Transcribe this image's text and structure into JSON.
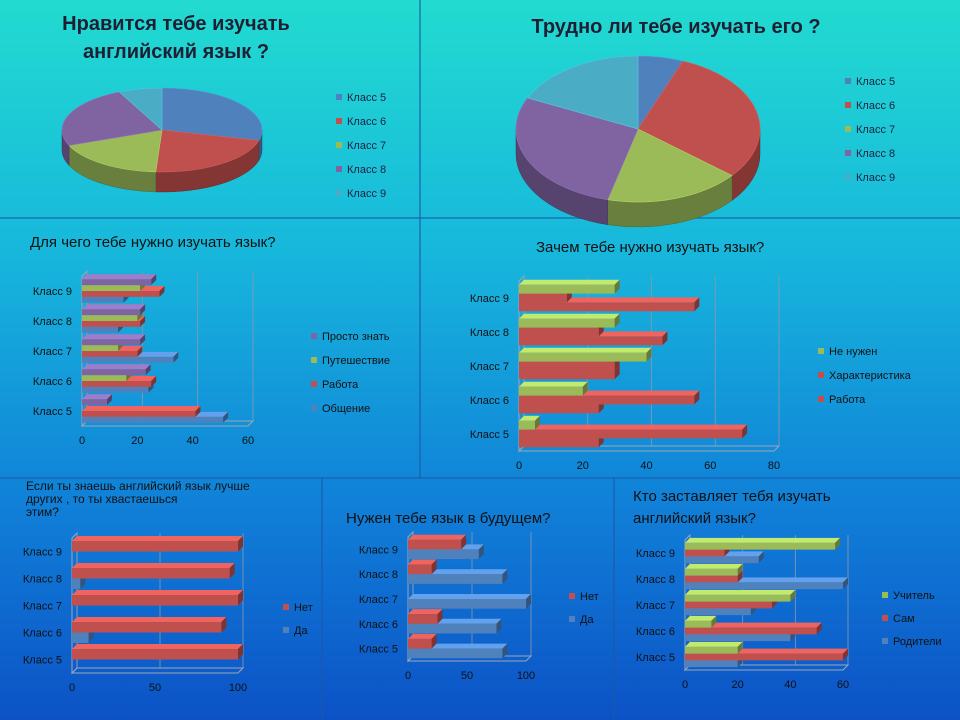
{
  "colors": {
    "blue": "#4f81bd",
    "red": "#c0504d",
    "green": "#9bbb59",
    "purple": "#8064a2",
    "cyan": "#4bacc6",
    "bg_top": "#22dbd0",
    "bg_bottom": "#0c55c8"
  },
  "chart_data": [
    {
      "type": "pie",
      "title": "Нравится тебе изучать английский язык ?",
      "categories": [
        "Класс 5",
        "Класс 6",
        "Класс 7",
        "Класс 8",
        "Класс 9"
      ],
      "values": [
        29,
        22,
        18,
        24,
        7
      ]
    },
    {
      "type": "pie",
      "title": "Трудно ли тебе изучать его ?",
      "categories": [
        "Класс 5",
        "Класс 6",
        "Класс 7",
        "Класс 8",
        "Класс 9"
      ],
      "values": [
        6,
        30,
        18,
        28,
        18
      ]
    },
    {
      "type": "bar",
      "orientation": "horizontal",
      "title": "Для чего тебе нужно изучать язык?",
      "categories": [
        "Класс 5",
        "Класс 6",
        "Класс 7",
        "Класс 8",
        "Класс 9"
      ],
      "series": [
        {
          "name": "Общение",
          "values": [
            51,
            24,
            33,
            13,
            15
          ]
        },
        {
          "name": "Работа",
          "values": [
            41,
            25,
            20,
            21,
            28
          ]
        },
        {
          "name": "Путешествие",
          "values": [
            0,
            16,
            13,
            20,
            21
          ]
        },
        {
          "name": "Просто знать",
          "values": [
            9,
            23,
            21,
            21,
            25
          ]
        }
      ],
      "xlim": [
        0,
        60
      ],
      "xticks": [
        0,
        20,
        40,
        60
      ],
      "legend": "right"
    },
    {
      "type": "bar",
      "orientation": "horizontal",
      "title": "Зачем тебе нужно изучать язык?",
      "categories": [
        "Класс 5",
        "Класс 6",
        "Класс 7",
        "Класс 8",
        "Класс 9"
      ],
      "series": [
        {
          "name": "Работа",
          "values": [
            25,
            25,
            30,
            45,
            55
          ]
        },
        {
          "name": "Характеристика",
          "values": [
            70,
            55,
            30,
            25,
            15
          ]
        },
        {
          "name": "Не нужен",
          "values": [
            5,
            20,
            40,
            30,
            30
          ]
        }
      ],
      "xlim": [
        0,
        80
      ],
      "xticks": [
        0,
        20,
        40,
        60,
        80
      ],
      "legend": "right"
    },
    {
      "type": "bar",
      "orientation": "horizontal",
      "title": "Если ты знаешь английский язык лучше других , то ты хвастаешься этим?",
      "title_lines": [
        "Если ты знаешь английский язык лучше",
        "других , то ты хвастаешься",
        "этим?"
      ],
      "categories": [
        "Класс 5",
        "Класс 6",
        "Класс 7",
        "Класс 8",
        "Класс 9"
      ],
      "series": [
        {
          "name": "Да",
          "values": [
            0,
            10,
            0,
            5,
            0
          ]
        },
        {
          "name": "Нет",
          "values": [
            100,
            90,
            100,
            95,
            100
          ]
        }
      ],
      "xlim": [
        0,
        100
      ],
      "xticks": [
        0,
        50,
        100
      ],
      "legend": "right"
    },
    {
      "type": "bar",
      "orientation": "horizontal",
      "title": "Нужен тебе язык в будущем?",
      "categories": [
        "Класс 5",
        "Класс 6",
        "Класс 7",
        "Класс 8",
        "Класс 9"
      ],
      "series": [
        {
          "name": "Да",
          "values": [
            80,
            75,
            100,
            80,
            60
          ]
        },
        {
          "name": "Нет",
          "values": [
            20,
            25,
            0,
            20,
            45
          ]
        }
      ],
      "xlim": [
        0,
        100
      ],
      "xticks": [
        0,
        50,
        100
      ],
      "legend": "right"
    },
    {
      "type": "bar",
      "orientation": "horizontal",
      "title": "Кто заставляет тебя изучать английский язык?",
      "title_lines": [
        "Кто заставляет тебя изучать",
        "английский язык?"
      ],
      "categories": [
        "Класс 5",
        "Класс 6",
        "Класс 7",
        "Класс 8",
        "Класс 9"
      ],
      "series": [
        {
          "name": "Родители",
          "values": [
            20,
            40,
            25,
            60,
            28
          ]
        },
        {
          "name": "Сам",
          "values": [
            60,
            50,
            33,
            20,
            15
          ]
        },
        {
          "name": "Учитель",
          "values": [
            20,
            10,
            40,
            20,
            57
          ]
        }
      ],
      "xlim": [
        0,
        60
      ],
      "xticks": [
        0,
        20,
        40,
        60
      ],
      "legend": "right"
    }
  ]
}
